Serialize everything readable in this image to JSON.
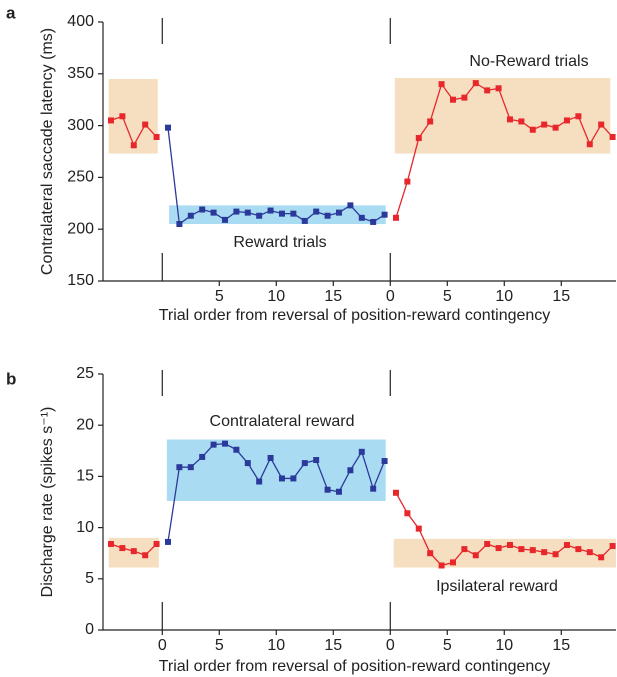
{
  "chart_data": [
    {
      "type": "line",
      "panel_label": "a",
      "ylabel": "Contralateral saccade latency (ms)",
      "xlabel": "Trial order from reversal of position-reward contingency",
      "xlim": [
        -5.2,
        39.8
      ],
      "ylim": [
        150,
        400
      ],
      "xticks": [
        5,
        10,
        15,
        {
          "value": 20,
          "label": "0"
        },
        {
          "value": 25,
          "label": "5"
        },
        {
          "value": 30,
          "label": "10"
        },
        {
          "value": 35,
          "label": "15"
        }
      ],
      "yticks": [
        150,
        200,
        250,
        300,
        350,
        400
      ],
      "reversals": [
        0,
        20
      ],
      "boxes": [
        {
          "x": [
            -4.7,
            -0.4
          ],
          "y": [
            273,
            345
          ],
          "color": "#f6dfc0"
        },
        {
          "x": [
            0.6,
            19.6
          ],
          "y": [
            205,
            223
          ],
          "color": "#a9dcf3"
        },
        {
          "x": [
            20.4,
            39.3
          ],
          "y": [
            273,
            346
          ],
          "color": "#f6dfc0"
        }
      ],
      "series": [
        {
          "color": "#e8272c",
          "x": [
            -4.5,
            -3.5,
            -2.5,
            -1.5,
            -0.5
          ],
          "values": [
            305,
            309,
            281,
            301,
            289
          ]
        },
        {
          "color": "#2b3a9a",
          "x": [
            0.5,
            1.5,
            2.5,
            3.5,
            4.5,
            5.5,
            6.5,
            7.5,
            8.5,
            9.5,
            10.5,
            11.5,
            12.5,
            13.5,
            14.5,
            15.5,
            16.5,
            17.5,
            18.5,
            19.5
          ],
          "values": [
            298,
            205,
            213,
            219,
            216,
            209,
            217,
            216,
            213,
            218,
            215,
            215,
            208,
            217,
            213,
            216,
            223,
            211,
            207,
            214
          ]
        },
        {
          "color": "#e8272c",
          "x": [
            20.5,
            21.5,
            22.5,
            23.5,
            24.5,
            25.5,
            26.5,
            27.5,
            28.5,
            29.5,
            30.5,
            31.5,
            32.5,
            33.5,
            34.5,
            35.5,
            36.5,
            37.5,
            38.5,
            39.5
          ],
          "values": [
            211,
            246,
            288,
            304,
            340,
            325,
            327,
            341,
            334,
            336,
            306,
            304,
            296,
            301,
            298,
            305,
            309,
            282,
            301,
            289
          ]
        }
      ],
      "annotations": [
        "No-Reward trials",
        "Reward trials"
      ]
    },
    {
      "type": "line",
      "panel_label": "b",
      "ylabel": "Discharge rate (spikes s⁻¹)",
      "xlabel": "Trial order from reversal of position-reward contingency",
      "xlim": [
        -5.2,
        39.8
      ],
      "ylim": [
        0,
        25
      ],
      "xticks": [
        0,
        5,
        10,
        15,
        {
          "value": 20,
          "label": "0"
        },
        {
          "value": 25,
          "label": "5"
        },
        {
          "value": 30,
          "label": "10"
        },
        {
          "value": 35,
          "label": "15"
        }
      ],
      "yticks": [
        0,
        5,
        10,
        15,
        20,
        25
      ],
      "reversals": [
        0,
        20
      ],
      "boxes": [
        {
          "x": [
            -4.7,
            -0.3
          ],
          "y": [
            6.1,
            9
          ],
          "color": "#f6dfc0"
        },
        {
          "x": [
            0.4,
            19.6
          ],
          "y": [
            12.6,
            18.6
          ],
          "color": "#a9dcf3"
        },
        {
          "x": [
            20.3,
            39.8
          ],
          "y": [
            6.1,
            8.9
          ],
          "color": "#f6dfc0"
        }
      ],
      "series": [
        {
          "color": "#e8272c",
          "x": [
            -4.5,
            -3.5,
            -2.5,
            -1.5,
            -0.5
          ],
          "values": [
            8.4,
            8.0,
            7.7,
            7.3,
            8.4
          ]
        },
        {
          "color": "#2b3a9a",
          "x": [
            0.5,
            1.5,
            2.5,
            3.5,
            4.5,
            5.5,
            6.5,
            7.5,
            8.5,
            9.5,
            10.5,
            11.5,
            12.5,
            13.5,
            14.5,
            15.5,
            16.5,
            17.5,
            18.5,
            19.5
          ],
          "values": [
            8.6,
            15.9,
            15.9,
            16.9,
            18.1,
            18.2,
            17.6,
            16.3,
            14.5,
            16.8,
            14.8,
            14.8,
            16.3,
            16.6,
            13.7,
            13.5,
            15.6,
            17.4,
            13.8,
            16.5
          ]
        },
        {
          "color": "#e8272c",
          "x": [
            20.5,
            21.5,
            22.5,
            23.5,
            24.5,
            25.5,
            26.5,
            27.5,
            28.5,
            29.5,
            30.5,
            31.5,
            32.5,
            33.5,
            34.5,
            35.5,
            36.5,
            37.5,
            38.5,
            39.5
          ],
          "values": [
            13.4,
            11.4,
            9.9,
            7.5,
            6.3,
            6.6,
            7.9,
            7.3,
            8.4,
            8.0,
            8.3,
            7.9,
            7.8,
            7.6,
            7.4,
            8.3,
            7.9,
            7.6,
            7.1,
            8.2
          ]
        }
      ],
      "annotations": [
        "Contralateral reward",
        "Ipsilateral reward"
      ]
    }
  ]
}
